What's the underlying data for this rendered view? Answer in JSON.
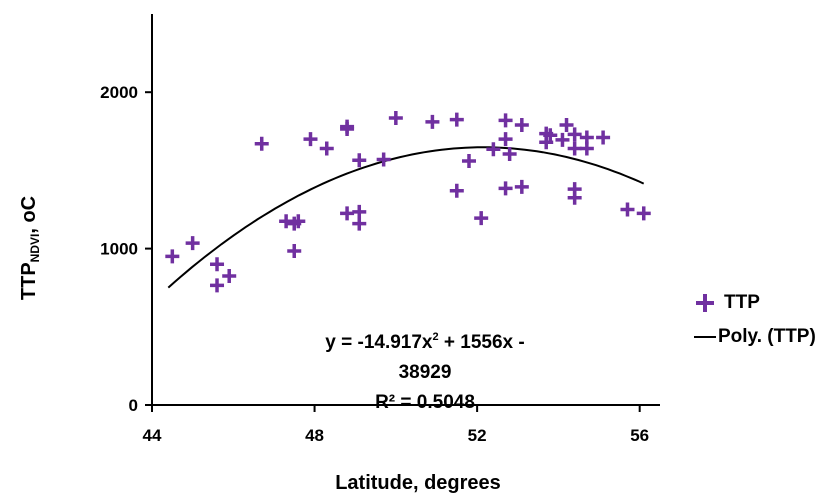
{
  "chart_data": {
    "type": "scatter",
    "xlabel": "Latitude, degrees",
    "ylabel": "TTP",
    "ylabel_subscript": "NDVI",
    "ylabel_suffix": ", oC",
    "xlim": [
      44,
      56.5
    ],
    "ylim": [
      0,
      2500
    ],
    "xticks": [
      "44",
      "48",
      "52",
      "56"
    ],
    "yticks": [
      "0",
      "1000",
      "2000"
    ],
    "marker_color": "#7030a0",
    "fit_color": "#000000",
    "series": [
      {
        "name": "TTP",
        "points": [
          [
            44.5,
            950
          ],
          [
            45.0,
            1035
          ],
          [
            45.6,
            900
          ],
          [
            45.6,
            765
          ],
          [
            45.9,
            825
          ],
          [
            46.7,
            1670
          ],
          [
            47.3,
            1175
          ],
          [
            47.5,
            1160
          ],
          [
            47.6,
            1175
          ],
          [
            47.5,
            985
          ],
          [
            47.9,
            1700
          ],
          [
            48.3,
            1640
          ],
          [
            48.8,
            1765
          ],
          [
            48.8,
            1780
          ],
          [
            48.8,
            1225
          ],
          [
            49.1,
            1235
          ],
          [
            49.1,
            1160
          ],
          [
            49.1,
            1565
          ],
          [
            49.7,
            1570
          ],
          [
            50.0,
            1835
          ],
          [
            50.9,
            1810
          ],
          [
            51.5,
            1825
          ],
          [
            51.5,
            1370
          ],
          [
            51.8,
            1560
          ],
          [
            52.1,
            1195
          ],
          [
            52.4,
            1635
          ],
          [
            52.7,
            1820
          ],
          [
            52.7,
            1700
          ],
          [
            52.8,
            1605
          ],
          [
            52.7,
            1385
          ],
          [
            53.1,
            1790
          ],
          [
            53.1,
            1395
          ],
          [
            53.7,
            1735
          ],
          [
            53.8,
            1725
          ],
          [
            53.7,
            1680
          ],
          [
            54.2,
            1790
          ],
          [
            54.1,
            1695
          ],
          [
            54.4,
            1730
          ],
          [
            54.4,
            1640
          ],
          [
            54.4,
            1380
          ],
          [
            54.4,
            1325
          ],
          [
            54.7,
            1710
          ],
          [
            54.7,
            1640
          ],
          [
            55.1,
            1710
          ],
          [
            55.7,
            1250
          ],
          [
            56.1,
            1225
          ]
        ]
      }
    ],
    "fit": {
      "name": "Poly. (TTP)",
      "coefficients": [
        -14.917,
        1556,
        -38929
      ],
      "x_range": [
        44.4,
        56.1
      ]
    },
    "equation_line1_a": "y = -14.917x",
    "equation_line1_sup": "2",
    "equation_line1_b": " + 1556x - 38929",
    "equation_line2": "R² = 0.5048",
    "legend": [
      {
        "label": "TTP",
        "kind": "marker"
      },
      {
        "label": "Poly. (TTP)",
        "kind": "line"
      }
    ],
    "legend_position": "right",
    "grid": false
  }
}
